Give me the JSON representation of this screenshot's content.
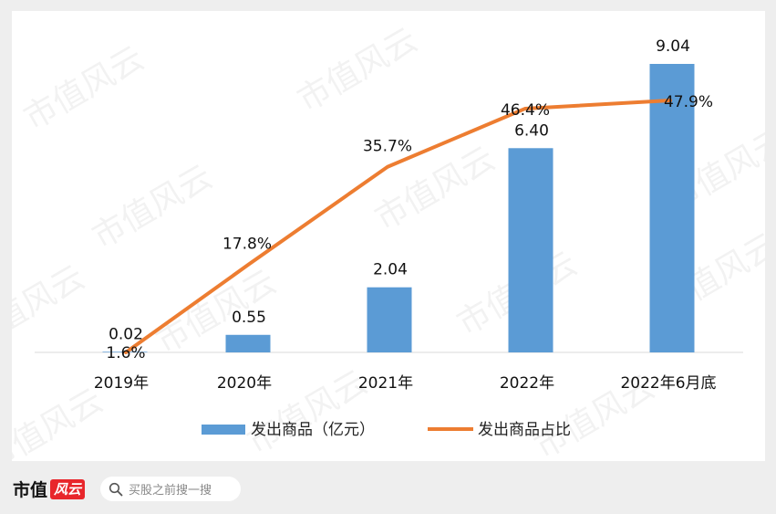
{
  "chart_data": {
    "type": "bar+line",
    "categories": [
      "2019年",
      "2020年",
      "2021年",
      "2022年",
      "2022年6月底"
    ],
    "series": [
      {
        "name": "发出商品（亿元）",
        "kind": "bar",
        "values": [
          0.02,
          0.55,
          2.04,
          6.4,
          9.04
        ],
        "labels": [
          "0.02",
          "0.55",
          "2.04",
          "6.40",
          "9.04"
        ],
        "color": "#5b9bd5"
      },
      {
        "name": "发出商品占比",
        "kind": "line",
        "values": [
          1.6,
          17.8,
          35.7,
          46.4,
          47.9
        ],
        "labels": [
          "1.6%",
          "17.8%",
          "35.7%",
          "46.4%",
          "47.9%"
        ],
        "color": "#ed7d31"
      }
    ],
    "bar_ylim": [
      0,
      9.5
    ],
    "line_ylim": [
      0,
      60
    ],
    "grid": false,
    "legend_position": "bottom"
  },
  "watermark": "市值风云",
  "footer": {
    "brand": "市值",
    "brand_seal": "风云",
    "search_placeholder": "买股之前搜一搜",
    "search_icon": "search-icon"
  }
}
